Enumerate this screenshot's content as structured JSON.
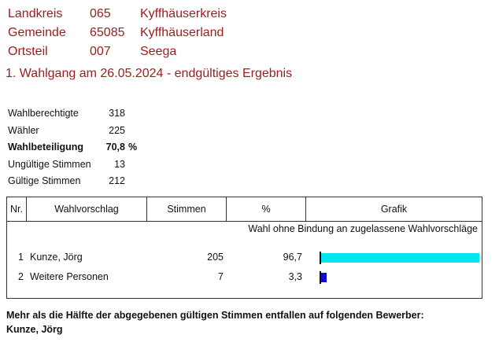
{
  "header": {
    "rows": [
      {
        "label": "Landkreis",
        "code": "065",
        "name": "Kyffhäuserkreis"
      },
      {
        "label": "Gemeinde",
        "code": "65085",
        "name": "Kyffhäuserland"
      },
      {
        "label": "Ortsteil",
        "code": "007",
        "name": "Seega"
      }
    ],
    "election_title": "1. Wahlgang am 26.05.2024 - endgültiges Ergebnis"
  },
  "stats": {
    "rows": [
      {
        "label": "Wahlberechtigte",
        "value": "318"
      },
      {
        "label": "Wähler",
        "value": "225"
      },
      {
        "label": "Wahlbeteiligung",
        "value": "70,8",
        "unit": "%"
      },
      {
        "label": "Ungültige Stimmen",
        "value": "13"
      },
      {
        "label": "Gültige Stimmen",
        "value": "212"
      }
    ]
  },
  "table": {
    "headers": {
      "nr": "Nr.",
      "wahlvorschlag": "Wahlvorschlag",
      "stimmen": "Stimmen",
      "percent": "%",
      "grafik": "Grafik"
    },
    "subtitle": "Wahl ohne Bindung an zugelassene Wahlvorschläge",
    "rows": [
      {
        "nr": "1",
        "name": "Kunze, Jörg",
        "votes": "205",
        "percent": "96,7",
        "share": 0.967,
        "color": "#00e5ee"
      },
      {
        "nr": "2",
        "name": "Weitere Personen",
        "votes": "7",
        "percent": "3,3",
        "share": 0.033,
        "color": "#1010cc"
      }
    ]
  },
  "footer": {
    "line1": "Mehr als die Hälfte der abgegebenen gültigen Stimmen entfallen auf folgenden Bewerber:",
    "line2": "Kunze, Jörg"
  }
}
